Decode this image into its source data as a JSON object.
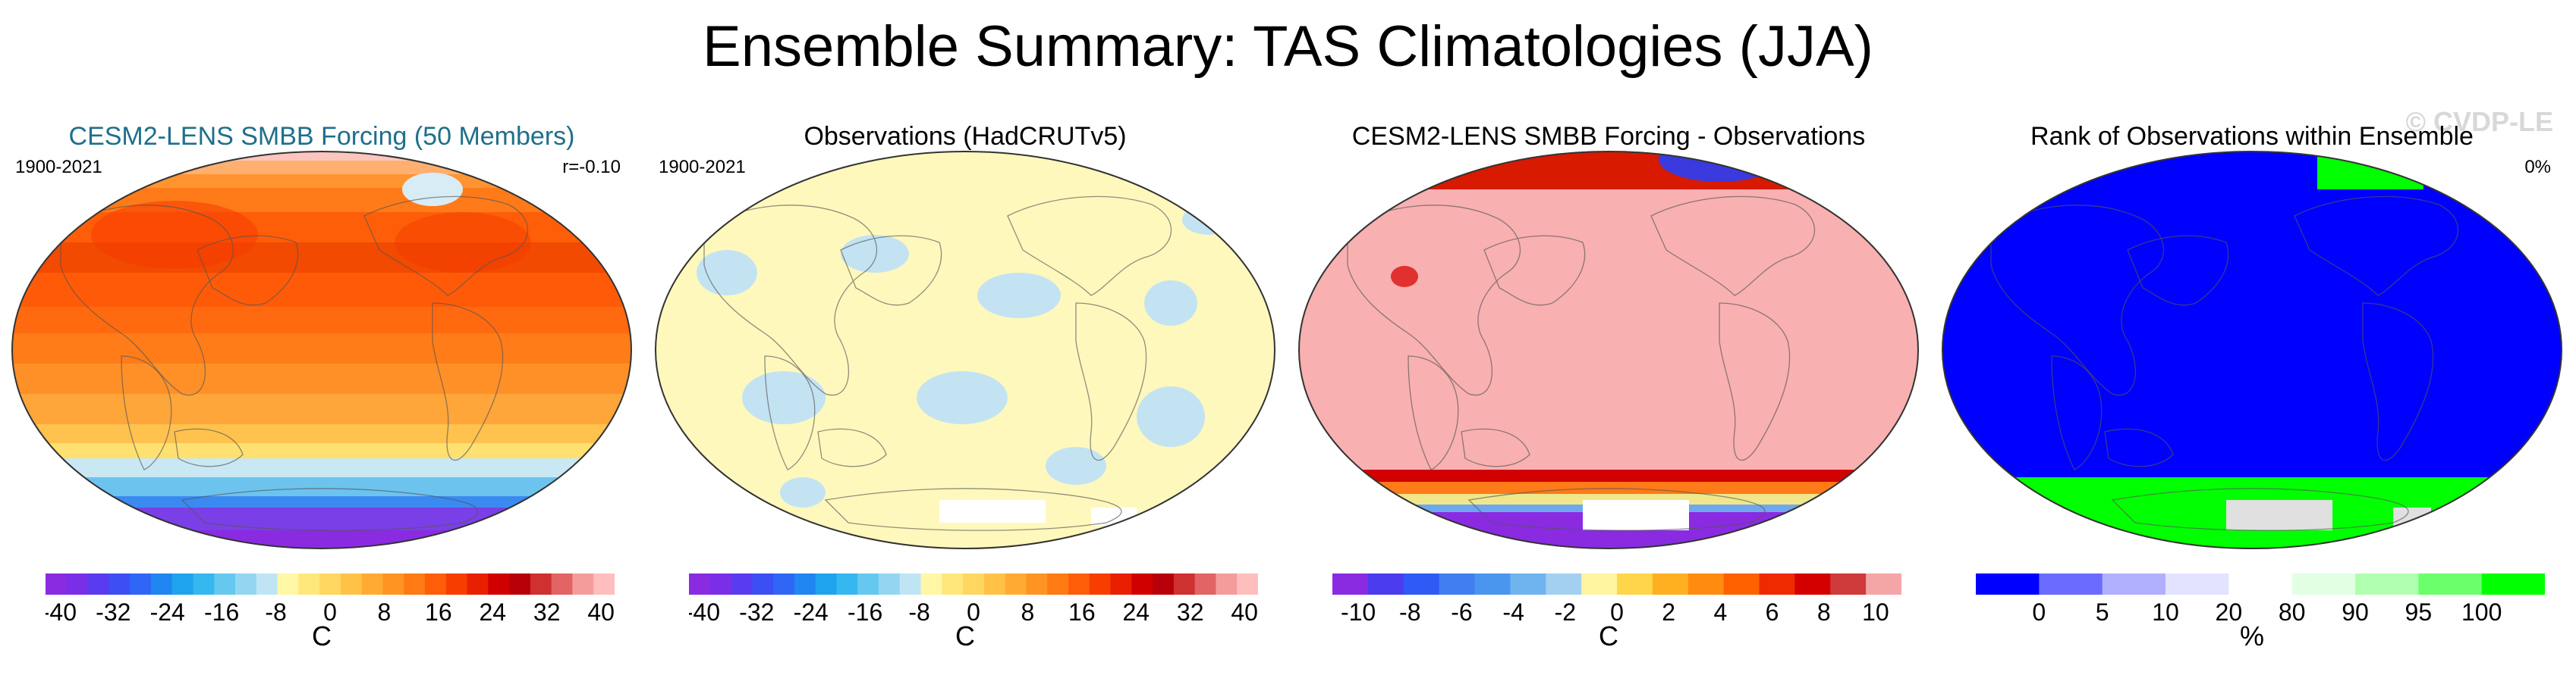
{
  "title": "Ensemble Summary: TAS Climatologies (JJA)",
  "watermark": "© CVDP-LE",
  "chart_data": [
    {
      "type": "heatmap",
      "title": "CESM2-LENS SMBB Forcing (50 Members)",
      "title_color": "#1f6f8b",
      "period": "1900-2021",
      "stat": "r=-0.10",
      "map_style": "temperature",
      "colorbar": {
        "label": "C",
        "tick_labels": [
          "-40",
          "-32",
          "-24",
          "-16",
          "-8",
          "0",
          "8",
          "16",
          "24",
          "32",
          "40"
        ],
        "tick_values": [
          -40,
          -32,
          -24,
          -16,
          -8,
          0,
          8,
          16,
          24,
          32,
          40
        ],
        "range": [
          -42,
          42
        ],
        "colors": [
          "#8a2be2",
          "#7b2ee8",
          "#5a3cf0",
          "#3c4ff5",
          "#2f66f5",
          "#1f86f2",
          "#1ea3ef",
          "#34b8ef",
          "#66c8ef",
          "#94d6f1",
          "#bfe5f4",
          "#fff7a6",
          "#ffe77a",
          "#ffd660",
          "#ffc247",
          "#ffab33",
          "#ff9422",
          "#ff7a12",
          "#ff5d08",
          "#f73e00",
          "#e81f00",
          "#d10000",
          "#b80008",
          "#cf3030",
          "#e36464",
          "#f49c9c",
          "#ffbebe"
        ]
      }
    },
    {
      "type": "heatmap",
      "title": "Observations (HadCRUTv5)",
      "title_color": "#000000",
      "period": "1900-2021",
      "stat": "",
      "map_style": "observations",
      "colorbar": {
        "label": "C",
        "tick_labels": [
          "-40",
          "-32",
          "-24",
          "-16",
          "-8",
          "0",
          "8",
          "16",
          "24",
          "32",
          "40"
        ],
        "tick_values": [
          -40,
          -32,
          -24,
          -16,
          -8,
          0,
          8,
          16,
          24,
          32,
          40
        ],
        "range": [
          -42,
          42
        ],
        "colors": [
          "#8a2be2",
          "#7b2ee8",
          "#5a3cf0",
          "#3c4ff5",
          "#2f66f5",
          "#1f86f2",
          "#1ea3ef",
          "#34b8ef",
          "#66c8ef",
          "#94d6f1",
          "#bfe5f4",
          "#fff7a6",
          "#ffe77a",
          "#ffd660",
          "#ffc247",
          "#ffab33",
          "#ff9422",
          "#ff7a12",
          "#ff5d08",
          "#f73e00",
          "#e81f00",
          "#d10000",
          "#b80008",
          "#cf3030",
          "#e36464",
          "#f49c9c",
          "#ffbebe"
        ]
      }
    },
    {
      "type": "heatmap",
      "title": "CESM2-LENS SMBB Forcing - Observations",
      "title_color": "#000000",
      "period": "",
      "stat": "",
      "map_style": "difference",
      "colorbar": {
        "label": "C",
        "tick_labels": [
          "-10",
          "-8",
          "-6",
          "-4",
          "-2",
          "0",
          "2",
          "4",
          "6",
          "8",
          "10"
        ],
        "tick_values": [
          -10,
          -8,
          -6,
          -4,
          -2,
          0,
          2,
          4,
          6,
          8,
          10
        ],
        "range": [
          -11,
          11
        ],
        "colors": [
          "#8a2be2",
          "#4b3cf0",
          "#2f5af5",
          "#3f7ff0",
          "#4a96ef",
          "#6fb3ef",
          "#a3d0f0",
          "#fff4a0",
          "#ffd54a",
          "#ffb020",
          "#ff8c10",
          "#ff6000",
          "#f02a00",
          "#d40000",
          "#cf3a3a",
          "#f4a6a6"
        ]
      }
    },
    {
      "type": "heatmap",
      "title": "Rank of Observations within Ensemble",
      "title_color": "#000000",
      "period": "",
      "stat": "0%",
      "map_style": "rank",
      "colorbar": {
        "label": "%",
        "tick_labels": [
          "0",
          "5",
          "10",
          "20",
          "80",
          "90",
          "95",
          "100"
        ],
        "tick_values": [
          0,
          5,
          10,
          20,
          80,
          90,
          95,
          100
        ],
        "segments": [
          [
            -5,
            0
          ],
          [
            0,
            5
          ],
          [
            5,
            10
          ],
          [
            10,
            20
          ],
          [
            20,
            80
          ],
          [
            80,
            90
          ],
          [
            90,
            95
          ],
          [
            95,
            100
          ],
          [
            100,
            105
          ]
        ],
        "colors": [
          "#0000ff",
          "#6b6bff",
          "#b0b0ff",
          "#e3e3ff",
          "#ffffff",
          "#e3ffe3",
          "#b0ffb0",
          "#6bff6b",
          "#00ff00"
        ]
      }
    }
  ]
}
